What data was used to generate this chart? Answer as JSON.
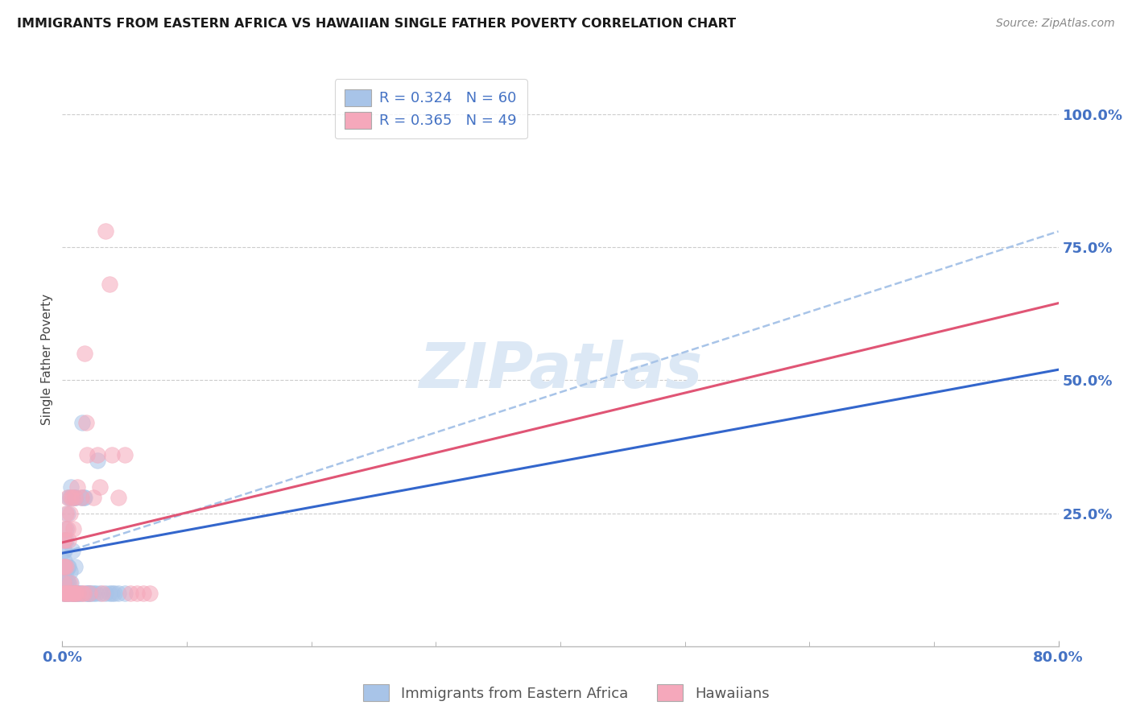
{
  "title": "IMMIGRANTS FROM EASTERN AFRICA VS HAWAIIAN SINGLE FATHER POVERTY CORRELATION CHART",
  "source": "Source: ZipAtlas.com",
  "ylabel": "Single Father Poverty",
  "legend_blue_r": "R = 0.324",
  "legend_blue_n": "N = 60",
  "legend_pink_r": "R = 0.365",
  "legend_pink_n": "N = 49",
  "blue_scatter_color": "#a8c4e8",
  "pink_scatter_color": "#f5a8bb",
  "blue_line_color": "#3366cc",
  "pink_line_color": "#e05575",
  "blue_dash_color": "#a8c4e8",
  "watermark_color": "#dce8f5",
  "blue_x": [
    0.001,
    0.001,
    0.001,
    0.001,
    0.002,
    0.002,
    0.002,
    0.002,
    0.002,
    0.002,
    0.003,
    0.003,
    0.003,
    0.003,
    0.003,
    0.004,
    0.004,
    0.004,
    0.004,
    0.005,
    0.005,
    0.005,
    0.005,
    0.006,
    0.006,
    0.006,
    0.007,
    0.007,
    0.008,
    0.008,
    0.009,
    0.009,
    0.01,
    0.01,
    0.01,
    0.011,
    0.011,
    0.012,
    0.013,
    0.014,
    0.015,
    0.015,
    0.016,
    0.017,
    0.018,
    0.019,
    0.02,
    0.021,
    0.022,
    0.023,
    0.025,
    0.027,
    0.028,
    0.03,
    0.035,
    0.038,
    0.04,
    0.042,
    0.045,
    0.05
  ],
  "blue_y": [
    0.1,
    0.12,
    0.15,
    0.18,
    0.1,
    0.12,
    0.14,
    0.16,
    0.18,
    0.2,
    0.1,
    0.12,
    0.14,
    0.2,
    0.22,
    0.1,
    0.12,
    0.15,
    0.25,
    0.1,
    0.12,
    0.15,
    0.28,
    0.1,
    0.14,
    0.28,
    0.12,
    0.3,
    0.1,
    0.18,
    0.1,
    0.28,
    0.1,
    0.15,
    0.28,
    0.1,
    0.28,
    0.1,
    0.1,
    0.1,
    0.1,
    0.28,
    0.42,
    0.28,
    0.28,
    0.1,
    0.1,
    0.1,
    0.1,
    0.1,
    0.1,
    0.1,
    0.35,
    0.1,
    0.1,
    0.1,
    0.1,
    0.1,
    0.1,
    0.1
  ],
  "pink_x": [
    0.001,
    0.001,
    0.001,
    0.001,
    0.002,
    0.002,
    0.002,
    0.002,
    0.003,
    0.003,
    0.003,
    0.004,
    0.004,
    0.004,
    0.005,
    0.005,
    0.006,
    0.006,
    0.007,
    0.007,
    0.008,
    0.008,
    0.009,
    0.009,
    0.01,
    0.01,
    0.011,
    0.012,
    0.013,
    0.015,
    0.016,
    0.017,
    0.018,
    0.019,
    0.02,
    0.022,
    0.025,
    0.028,
    0.03,
    0.032,
    0.035,
    0.038,
    0.04,
    0.045,
    0.05,
    0.055,
    0.06,
    0.065,
    0.07
  ],
  "pink_y": [
    0.1,
    0.12,
    0.15,
    0.2,
    0.1,
    0.15,
    0.2,
    0.22,
    0.1,
    0.15,
    0.25,
    0.1,
    0.22,
    0.28,
    0.1,
    0.2,
    0.12,
    0.25,
    0.1,
    0.28,
    0.1,
    0.28,
    0.1,
    0.22,
    0.1,
    0.28,
    0.1,
    0.3,
    0.1,
    0.28,
    0.1,
    0.1,
    0.55,
    0.42,
    0.36,
    0.1,
    0.28,
    0.36,
    0.3,
    0.1,
    0.78,
    0.68,
    0.36,
    0.28,
    0.36,
    0.1,
    0.1,
    0.1,
    0.1
  ],
  "xmin": 0.0,
  "xmax": 0.8,
  "ymin": 0.0,
  "ymax": 1.08,
  "ytick_vals": [
    0.25,
    0.5,
    0.75,
    1.0
  ],
  "ytick_labels": [
    "25.0%",
    "50.0%",
    "75.0%",
    "100.0%"
  ],
  "blue_line_x0": 0.0,
  "blue_line_y0": 0.175,
  "blue_line_x1": 0.8,
  "blue_line_y1": 0.52,
  "pink_line_x0": 0.0,
  "pink_line_y0": 0.195,
  "pink_line_x1": 0.8,
  "pink_line_y1": 0.645,
  "dash_line_x0": 0.0,
  "dash_line_y0": 0.175,
  "dash_line_x1": 0.8,
  "dash_line_y1": 0.78,
  "background_color": "#ffffff",
  "grid_color": "#cccccc"
}
